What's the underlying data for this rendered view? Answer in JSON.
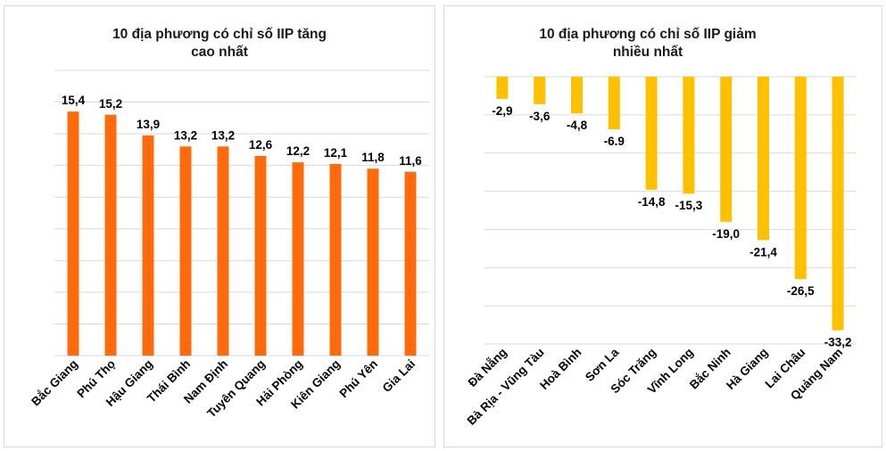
{
  "chart_data": [
    {
      "type": "bar",
      "title_lines": [
        "10 địa phương có chỉ số IIP tăng",
        "cao nhất"
      ],
      "categories": [
        "Bắc Giang",
        "Phú Thọ",
        "Hậu Giang",
        "Thái Bình",
        "Nam Định",
        "Tuyên Quang",
        "Hải Phòng",
        "Kiên Giang",
        "Phú Yên",
        "Gia Lai"
      ],
      "values": [
        15.4,
        15.2,
        13.9,
        13.2,
        13.2,
        12.6,
        12.2,
        12.1,
        11.8,
        11.6
      ],
      "value_labels": [
        "15,4",
        "15,2",
        "13,9",
        "13,2",
        "13,2",
        "12,6",
        "12,2",
        "12,1",
        "11,8",
        "11,6"
      ],
      "ylim": [
        0,
        18
      ],
      "grid_step": 2,
      "color": "#ff6a0c",
      "xlabel": "",
      "ylabel": ""
    },
    {
      "type": "bar",
      "title_lines": [
        "10 địa phương có chỉ số IIP giảm",
        "nhiều nhất"
      ],
      "categories": [
        "Đà Nẵng",
        "Bà Rịa - Vũng Tàu",
        "Hoà Bình",
        "Sơn La",
        "Sóc Trăng",
        "Vĩnh Long",
        "Bắc Ninh",
        "Hà Giang",
        "Lai Châu",
        "Quảng Nam"
      ],
      "values": [
        -2.9,
        -3.6,
        -4.8,
        -6.9,
        -14.8,
        -15.3,
        -19.0,
        -21.4,
        -26.5,
        -33.2
      ],
      "value_labels": [
        "-2,9",
        "-3,6",
        "-4,8",
        "-6.9",
        "-14,8",
        "-15,3",
        "-19,0",
        "-21,4",
        "-26,5",
        "-33,2"
      ],
      "ylim": [
        -35,
        0
      ],
      "grid_step": 5,
      "color": "#ffc000",
      "xlabel": "",
      "ylabel": ""
    }
  ]
}
